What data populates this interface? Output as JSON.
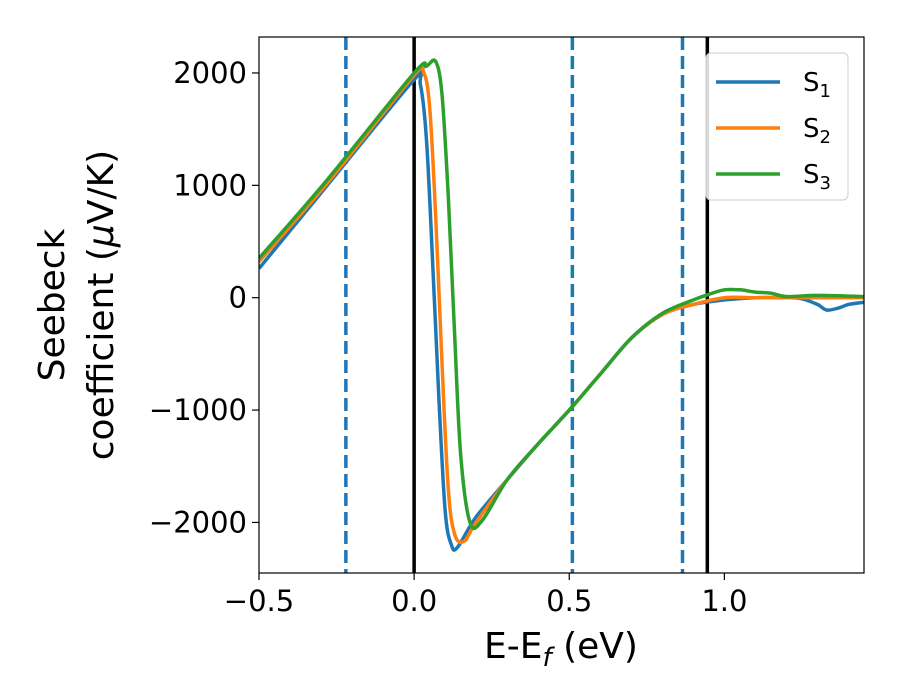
{
  "chart_data": {
    "type": "line",
    "title": "",
    "xlabel": {
      "main": "E-E",
      "sub": "f",
      "unit": " (eV)"
    },
    "ylabel": {
      "line1": "Seebeck",
      "line2_pre": "coefficient  (",
      "line2_mu": "μ",
      "line2_post": "V/K)"
    },
    "xlim": [
      -0.5,
      1.45
    ],
    "ylim": [
      -2450,
      2320
    ],
    "xticks": [
      -0.5,
      0.0,
      0.5,
      1.0
    ],
    "xtick_labels": [
      "−0.5",
      "0.0",
      "0.5",
      "1.0"
    ],
    "yticks": [
      -2000,
      -1000,
      0,
      1000,
      2000
    ],
    "ytick_labels": [
      "−2000",
      "−1000",
      "0",
      "1000",
      "2000"
    ],
    "grid": false,
    "legend_position": "top-right",
    "vlines_dashed": [
      -0.22,
      0.51,
      0.865
    ],
    "vlines_dashed_color": "#1f77b4",
    "vlines_solid": [
      0.0,
      0.945
    ],
    "vlines_solid_color": "#000000",
    "series": [
      {
        "name": "S",
        "sub": "1",
        "color": "#1f77b4",
        "x": [
          -0.5,
          -0.28,
          0.0,
          0.02,
          0.04,
          0.06,
          0.08,
          0.1,
          0.12,
          0.14,
          0.2,
          0.3,
          0.4,
          0.5,
          0.6,
          0.7,
          0.8,
          0.9,
          1.0,
          1.1,
          1.2,
          1.25,
          1.3,
          1.33,
          1.37,
          1.4,
          1.45
        ],
        "y": [
          260,
          1000,
          1940,
          1900,
          1400,
          300,
          -900,
          -1900,
          -2200,
          -2220,
          -1950,
          -1620,
          -1300,
          -1000,
          -680,
          -360,
          -150,
          -60,
          -20,
          0,
          0,
          -10,
          -60,
          -110,
          -90,
          -60,
          -40
        ]
      },
      {
        "name": "S",
        "sub": "2",
        "color": "#ff7f0e",
        "x": [
          -0.5,
          -0.28,
          0.0,
          0.03,
          0.05,
          0.07,
          0.09,
          0.11,
          0.13,
          0.16,
          0.2,
          0.3,
          0.4,
          0.5,
          0.6,
          0.7,
          0.8,
          0.9,
          1.0,
          1.1,
          1.2,
          1.3,
          1.45
        ],
        "y": [
          320,
          1020,
          1980,
          2010,
          1700,
          700,
          -600,
          -1700,
          -2100,
          -2170,
          -2000,
          -1620,
          -1300,
          -1000,
          -680,
          -360,
          -150,
          -60,
          0,
          0,
          0,
          0,
          0
        ]
      },
      {
        "name": "S",
        "sub": "3",
        "color": "#2ca02c",
        "x": [
          -0.5,
          -0.28,
          0.0,
          0.04,
          0.07,
          0.09,
          0.11,
          0.13,
          0.15,
          0.18,
          0.22,
          0.3,
          0.4,
          0.5,
          0.6,
          0.7,
          0.8,
          0.9,
          0.95,
          1.0,
          1.05,
          1.1,
          1.15,
          1.2,
          1.3,
          1.45
        ],
        "y": [
          350,
          1050,
          2000,
          2060,
          2100,
          1800,
          900,
          -300,
          -1400,
          -2000,
          -1980,
          -1620,
          -1300,
          -1000,
          -680,
          -360,
          -140,
          -20,
          30,
          70,
          70,
          50,
          40,
          10,
          20,
          10
        ]
      }
    ]
  }
}
